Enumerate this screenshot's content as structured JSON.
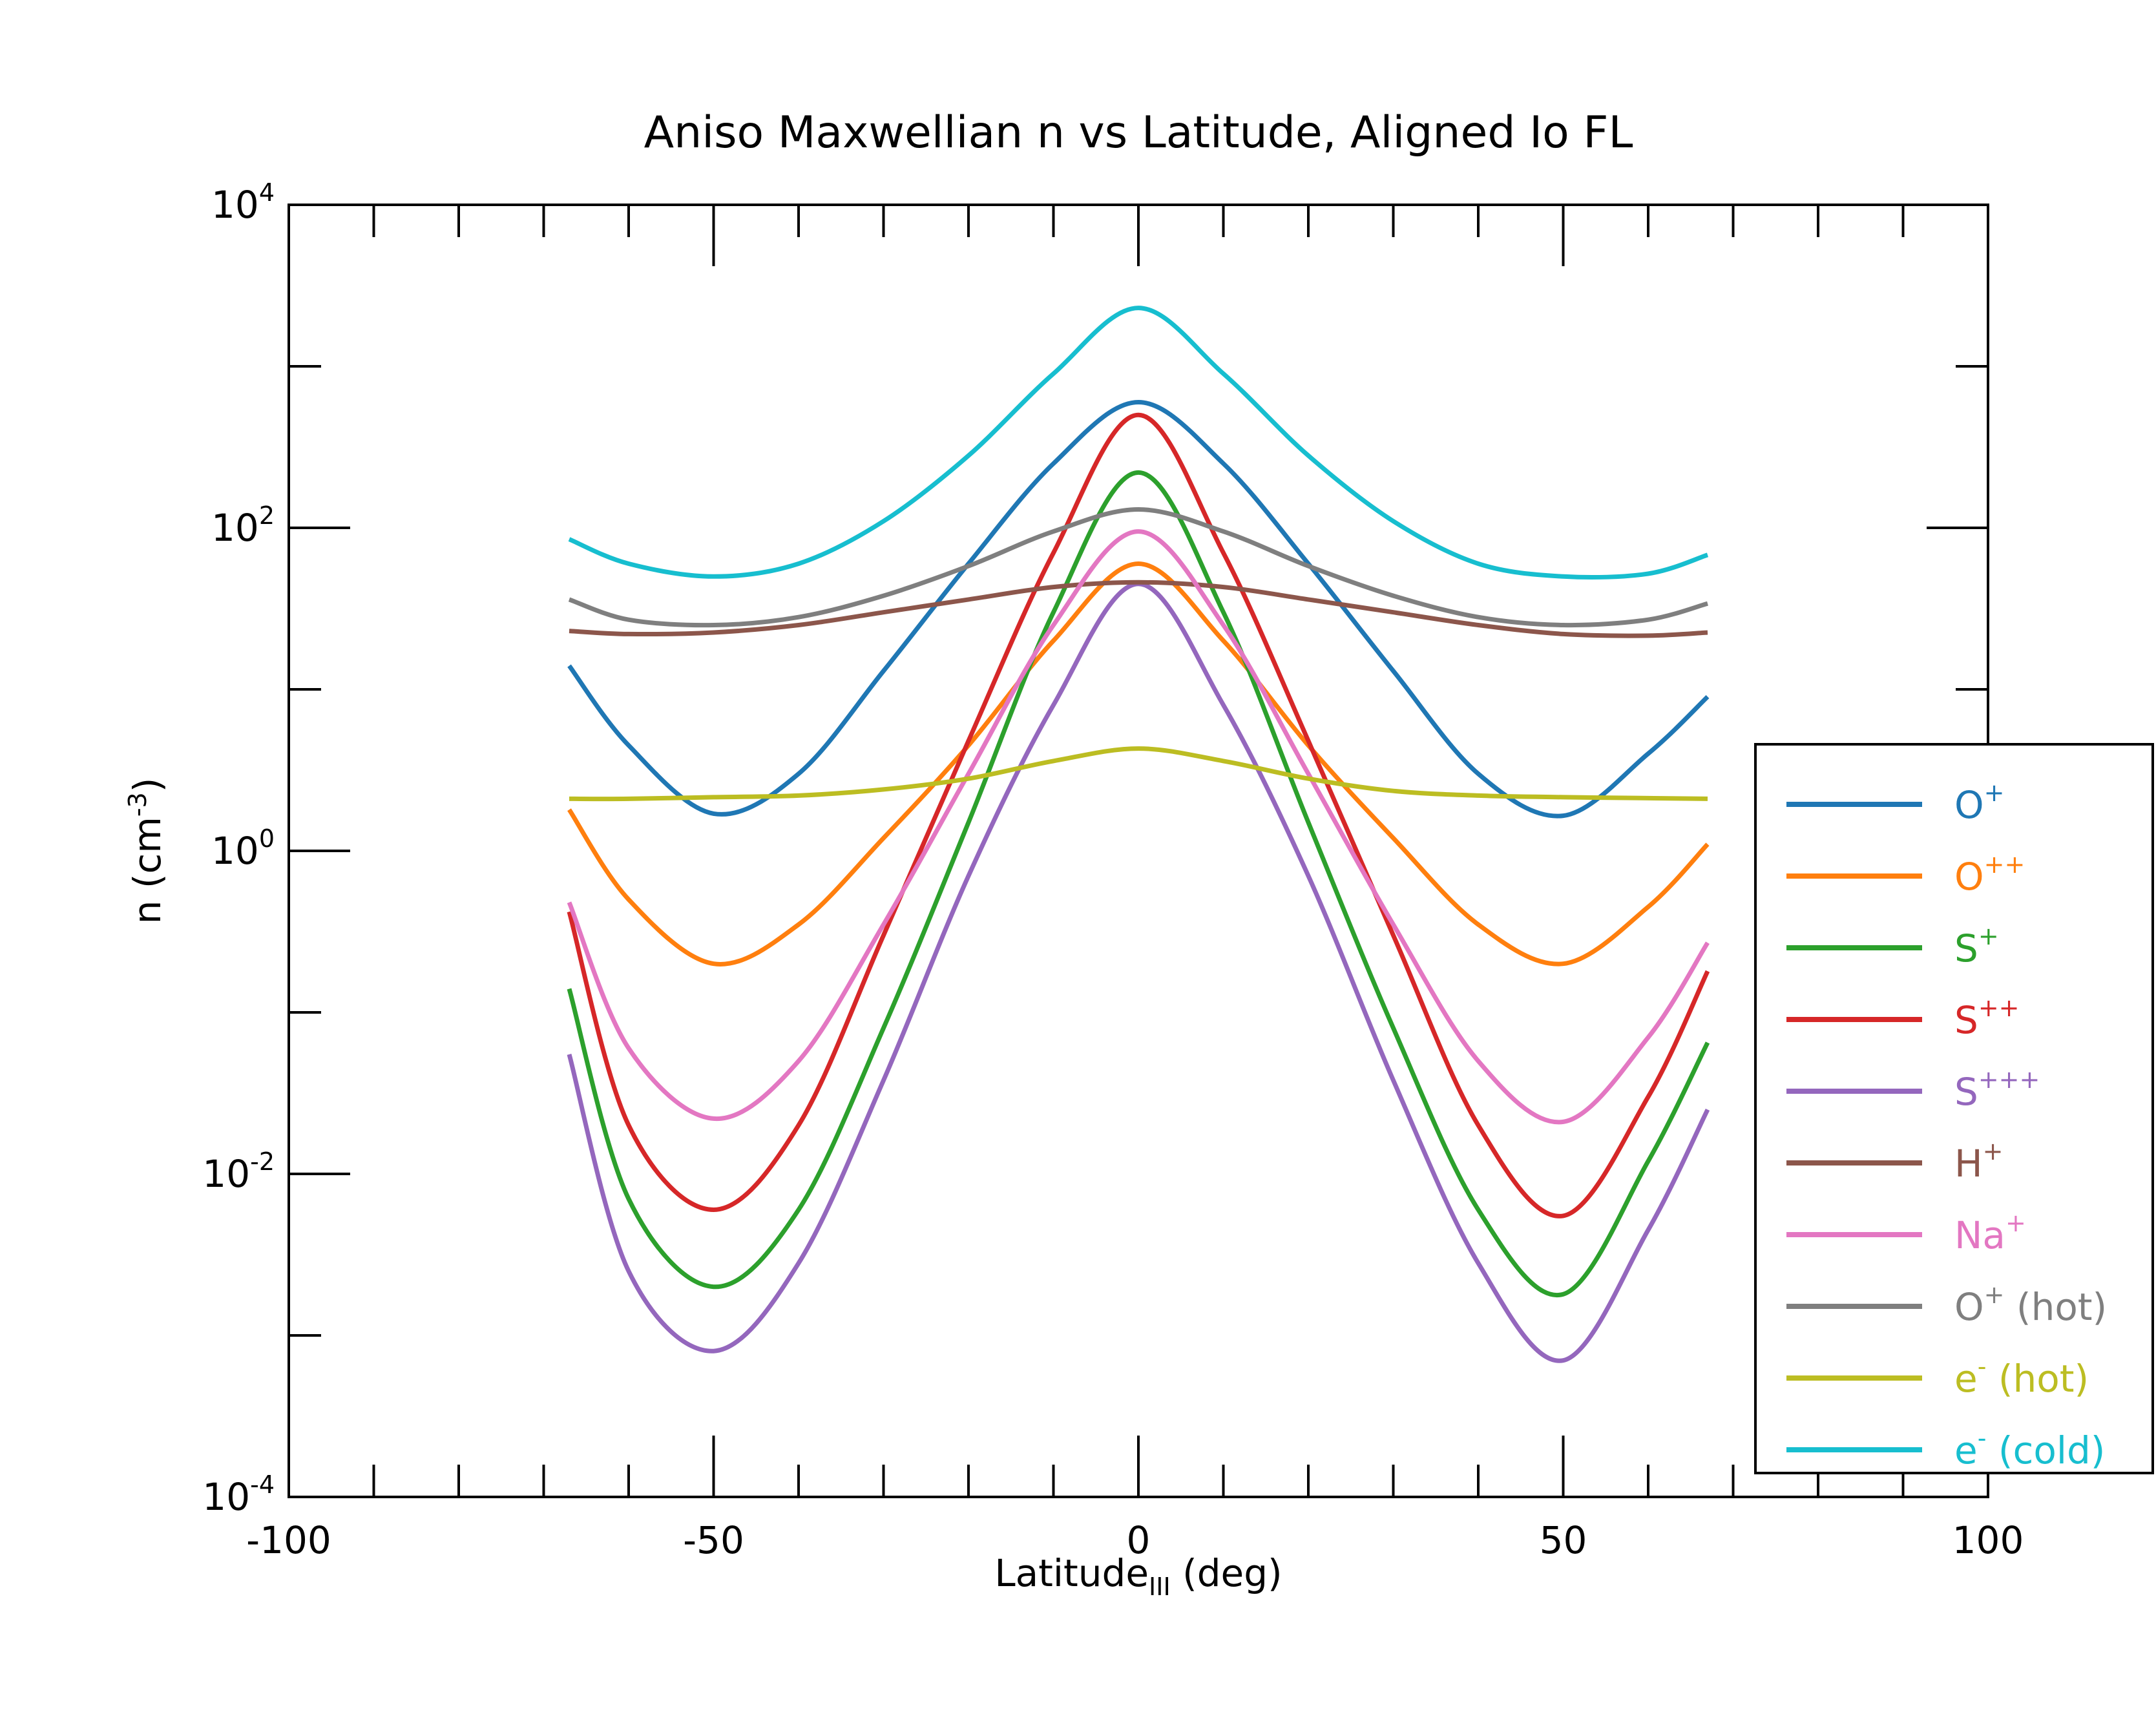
{
  "chart_data": {
    "type": "line",
    "title": "Aniso Maxwellian n vs Latitude, Aligned Io FL",
    "xlabel": {
      "main": "Latitude",
      "sub": "III",
      "tail": " (deg)"
    },
    "ylabel": {
      "main": "n (cm",
      "sup": "-3",
      "tail": ")"
    },
    "xlim": [
      -100,
      100
    ],
    "ylim": [
      0.0001,
      10000
    ],
    "yscale": "log",
    "grid": false,
    "legend_position": "right",
    "xticks": [
      "-100",
      "-50",
      "0",
      "50",
      "100"
    ],
    "yticks": [
      {
        "base": "10",
        "exp": "4"
      },
      {
        "base": "10",
        "exp": "2"
      },
      {
        "base": "10",
        "exp": "0"
      },
      {
        "base": "10",
        "exp": "-2"
      },
      {
        "base": "10",
        "exp": "-4"
      }
    ],
    "x": [
      -67,
      -60,
      -50,
      -40,
      -30,
      -20,
      -10,
      0,
      10,
      20,
      30,
      40,
      50,
      60,
      67
    ],
    "series": [
      {
        "name": "O",
        "sup": "+",
        "suffix": "",
        "color": "#1f77b4",
        "values": [
          14,
          4.5,
          1.7,
          3,
          13,
          60,
          250,
          600,
          250,
          60,
          13,
          3,
          1.65,
          4,
          9
        ]
      },
      {
        "name": "O",
        "sup": "++",
        "suffix": "",
        "color": "#ff7f0e",
        "values": [
          1.8,
          0.5,
          0.2,
          0.35,
          1.2,
          4.5,
          20,
          60,
          20,
          4.5,
          1.2,
          0.35,
          0.2,
          0.45,
          1.1
        ]
      },
      {
        "name": "S",
        "sup": "+",
        "suffix": "",
        "color": "#2ca02c",
        "values": [
          0.14,
          0.007,
          0.002,
          0.006,
          0.08,
          1.5,
          30,
          220,
          30,
          1.5,
          0.08,
          0.006,
          0.0018,
          0.012,
          0.065
        ]
      },
      {
        "name": "S",
        "sup": "++",
        "suffix": "",
        "color": "#d62728",
        "values": [
          0.42,
          0.02,
          0.006,
          0.02,
          0.3,
          4.8,
          70,
          500,
          70,
          4.8,
          0.3,
          0.02,
          0.0055,
          0.03,
          0.18
        ]
      },
      {
        "name": "S",
        "sup": "+++",
        "suffix": "",
        "color": "#9467bd",
        "values": [
          0.055,
          0.0025,
          0.0008,
          0.0028,
          0.038,
          0.7,
          8,
          45,
          8,
          0.7,
          0.038,
          0.0028,
          0.0007,
          0.0045,
          0.025
        ]
      },
      {
        "name": "H",
        "sup": "+",
        "suffix": "",
        "color": "#8c564b",
        "values": [
          23,
          22,
          22.5,
          25,
          30,
          36,
          43,
          46,
          43,
          36,
          30,
          25,
          22,
          21.5,
          22.5
        ]
      },
      {
        "name": "Na",
        "sup": "+",
        "suffix": "",
        "color": "#e377c2",
        "values": [
          0.48,
          0.06,
          0.022,
          0.05,
          0.35,
          3,
          25,
          95,
          25,
          3,
          0.35,
          0.05,
          0.021,
          0.07,
          0.27
        ]
      },
      {
        "name": "O",
        "sup": "+",
        "suffix": " (hot)",
        "color": "#7f7f7f",
        "values": [
          36,
          27,
          25,
          28,
          38,
          58,
          95,
          130,
          95,
          58,
          38,
          28,
          25,
          27,
          34
        ]
      },
      {
        "name": "e",
        "sup": "-",
        "suffix": " (hot)",
        "color": "#bcbd22",
        "values": [
          2.1,
          2.1,
          2.15,
          2.2,
          2.4,
          2.8,
          3.6,
          4.3,
          3.6,
          2.8,
          2.35,
          2.2,
          2.15,
          2.12,
          2.1
        ]
      },
      {
        "name": "e",
        "sup": "-",
        "suffix": " (cold)",
        "color": "#17becf",
        "values": [
          85,
          60,
          50,
          60,
          110,
          280,
          900,
          2300,
          900,
          280,
          110,
          60,
          50,
          52,
          68
        ]
      }
    ]
  }
}
